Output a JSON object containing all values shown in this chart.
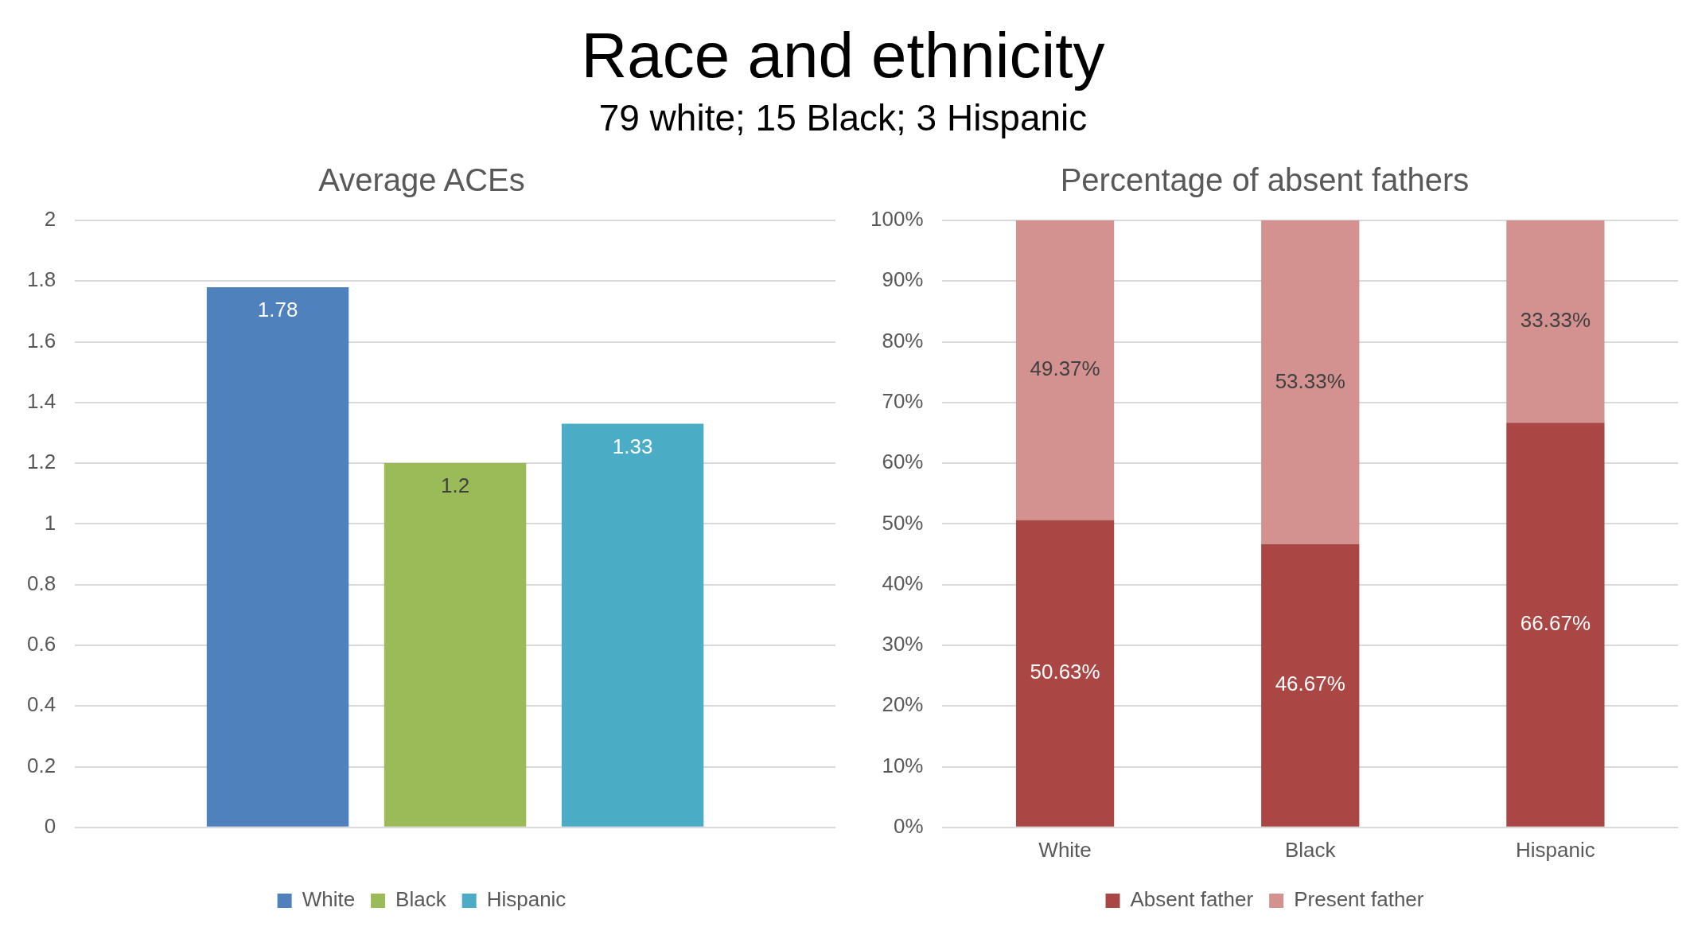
{
  "chart_data": [
    {
      "type": "bar",
      "title": "Average ACEs",
      "annotations": [
        "Race and ethnicity",
        "79 white; 15 Black; 3 Hispanic"
      ],
      "categories": [
        null
      ],
      "series": [
        {
          "name": "White",
          "color": "#4f81bd",
          "values": [
            1.78
          ]
        },
        {
          "name": "Black",
          "color": "#9bbb59",
          "values": [
            1.2
          ]
        },
        {
          "name": "Hispanic",
          "color": "#4bacc6",
          "values": [
            1.33
          ]
        }
      ],
      "ylim": [
        0,
        2
      ],
      "yticks": [
        0,
        0.2,
        0.4,
        0.6,
        0.8,
        1,
        1.2,
        1.4,
        1.6,
        1.8,
        2
      ],
      "grid": "y",
      "legend": "bottom",
      "data_labels": true
    },
    {
      "type": "bar",
      "title": "Percentage of absent fathers",
      "categories": [
        "White",
        "Black",
        "Hispanic"
      ],
      "stacked": true,
      "series": [
        {
          "name": "Absent father",
          "color": "#aa4644",
          "values": [
            50.63,
            46.67,
            66.67
          ],
          "value_labels": [
            "50.63%",
            "46.67%",
            "66.67%"
          ]
        },
        {
          "name": "Present father",
          "color": "#d39190",
          "values": [
            49.37,
            53.33,
            33.33
          ],
          "value_labels": [
            "49.37%",
            "53.33%",
            "33.33%"
          ]
        }
      ],
      "ylim": [
        0,
        100
      ],
      "yticks": [
        {
          "value": 0,
          "label": "0%"
        },
        {
          "value": 10,
          "label": "10%"
        },
        {
          "value": 20,
          "label": "20%"
        },
        {
          "value": 30,
          "label": "30%"
        },
        {
          "value": 40,
          "label": "40%"
        },
        {
          "value": 50,
          "label": "50%"
        },
        {
          "value": 60,
          "label": "60%"
        },
        {
          "value": 70,
          "label": "70%"
        },
        {
          "value": 80,
          "label": "80%"
        },
        {
          "value": 90,
          "label": "90%"
        },
        {
          "value": 100,
          "label": "100%"
        }
      ],
      "grid": "y",
      "legend": "bottom"
    }
  ]
}
